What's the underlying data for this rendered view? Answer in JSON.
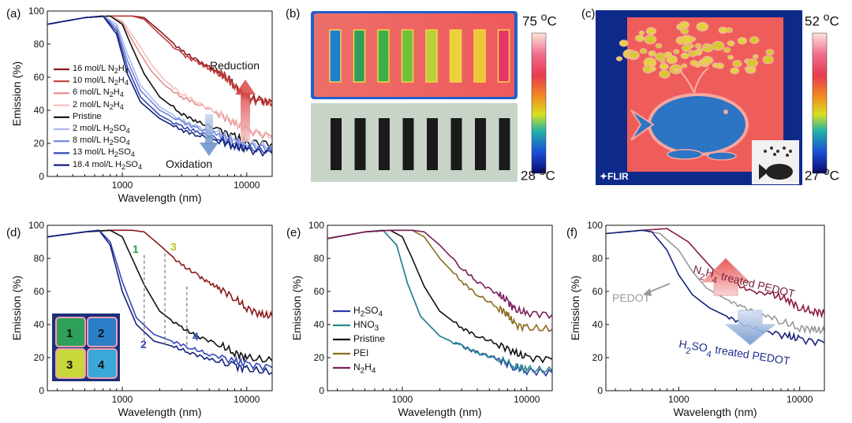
{
  "panels": {
    "a": {
      "label": "(a)",
      "chart_data": {
        "type": "line",
        "xlabel": "Wavelength (nm)",
        "ylabel": "Emission (%)",
        "xscale": "log",
        "xlim": [
          250,
          16000
        ],
        "ylim": [
          0,
          100
        ],
        "xticks": [
          "1000",
          "10000"
        ],
        "yticks": [
          "0",
          "20",
          "40",
          "60",
          "80",
          "100"
        ],
        "legend_position": "left",
        "annotations": [
          "Reduction",
          "Oxidation"
        ],
        "series": [
          {
            "name_html": "16 mol/L N<sub>2</sub>H<sub>4</sub>",
            "name": "16 mol/L N2H4",
            "color": "#8b1a1a",
            "x": [
              250,
              500,
              800,
              1200,
              1500,
              2000,
              3000,
              4000,
              5000,
              6000,
              7000,
              8000,
              10000,
              13000,
              16000
            ],
            "y": [
              92,
              96,
              97,
              97,
              96,
              88,
              76,
              70,
              66,
              63,
              60,
              55,
              48,
              46,
              45
            ]
          },
          {
            "name_html": "10 mol/L N<sub>2</sub>H<sub>4</sub>",
            "name": "10 mol/L N2H4",
            "color": "#c23b3b",
            "x": [
              250,
              500,
              800,
              1200,
              1500,
              2000,
              3000,
              4000,
              5000,
              6000,
              7000,
              8000,
              10000,
              13000,
              16000
            ],
            "y": [
              92,
              96,
              97,
              97,
              95,
              86,
              74,
              69,
              65,
              62,
              59,
              54,
              47,
              45,
              44
            ]
          },
          {
            "name_html": "6 mol/L N<sub>2</sub>H<sub>4</sub>",
            "name": "6 mol/L N2H4",
            "color": "#e58f8f",
            "x": [
              250,
              500,
              800,
              1000,
              1300,
              1700,
              2200,
              3000,
              4000,
              6000,
              8000,
              10000,
              16000
            ],
            "y": [
              92,
              96,
              97,
              93,
              78,
              64,
              55,
              48,
              44,
              38,
              32,
              28,
              24
            ]
          },
          {
            "name_html": "2 mol/L N<sub>2</sub>H<sub>4</sub>",
            "name": "2 mol/L N2H4",
            "color": "#f4c0c0",
            "x": [
              250,
              500,
              800,
              1000,
              1300,
              1700,
              2200,
              3000,
              4000,
              6000,
              8000,
              10000,
              16000
            ],
            "y": [
              92,
              96,
              97,
              94,
              82,
              68,
              58,
              50,
              45,
              38,
              32,
              28,
              24
            ]
          },
          {
            "name_html": "Pristine",
            "name": "Pristine",
            "color": "#111111",
            "x": [
              250,
              500,
              800,
              1000,
              1200,
              1500,
              2000,
              3000,
              4000,
              6000,
              8000,
              10000,
              16000
            ],
            "y": [
              92,
              96,
              97,
              92,
              78,
              62,
              48,
              38,
              33,
              28,
              24,
              21,
              20
            ]
          },
          {
            "name_html": "2 mol/L H<sub>2</sub>SO<sub>4</sub>",
            "name": "2 mol/L H2SO4",
            "color": "#aab8ea",
            "x": [
              250,
              500,
              700,
              900,
              1100,
              1400,
              2000,
              3000,
              4000,
              6000,
              8000,
              10000,
              16000
            ],
            "y": [
              92,
              96,
              97,
              92,
              74,
              55,
              42,
              34,
              30,
              26,
              22,
              20,
              18
            ]
          },
          {
            "name_html": "8 mol/L H<sub>2</sub>SO<sub>4</sub>",
            "name": "8 mol/L H2SO4",
            "color": "#6f84d8",
            "x": [
              250,
              500,
              700,
              900,
              1100,
              1400,
              2000,
              3000,
              4000,
              6000,
              8000,
              10000,
              16000
            ],
            "y": [
              92,
              96,
              97,
              90,
              70,
              52,
              40,
              33,
              29,
              25,
              21,
              19,
              17
            ]
          },
          {
            "name_html": "13 mol/L H<sub>2</sub>SO<sub>4</sub>",
            "name": "13 mol/L H2SO4",
            "color": "#3448b5",
            "x": [
              250,
              500,
              700,
              900,
              1100,
              1400,
              2000,
              3000,
              4000,
              6000,
              8000,
              10000,
              16000
            ],
            "y": [
              92,
              96,
              97,
              88,
              66,
              48,
              37,
              30,
              27,
              23,
              19,
              17,
              15
            ]
          },
          {
            "name_html": "18.4 mol/L H<sub>2</sub>SO<sub>4</sub>",
            "name": "18.4 mol/L H2SO4",
            "color": "#14237a",
            "x": [
              250,
              500,
              700,
              900,
              1100,
              1400,
              2000,
              3000,
              4000,
              6000,
              8000,
              10000,
              16000
            ],
            "y": [
              92,
              96,
              97,
              86,
              62,
              45,
              35,
              28,
              25,
              22,
              18,
              16,
              14
            ]
          }
        ]
      }
    },
    "b": {
      "label": "(b)",
      "scale_max": "75 °C",
      "scale_max_html": "75 <sup>o</sup>C",
      "scale_min_html": "28 <sup>o</sup>C",
      "strip_colors": [
        "#1c7fd0",
        "#2fa05a",
        "#3bb04a",
        "#6cc03c",
        "#b8d03a",
        "#e7d33a",
        "#eec63a",
        "#e8346a"
      ]
    },
    "c": {
      "label": "(c)",
      "scale_max_html": "52 <sup>o</sup>C",
      "scale_min_html": "27 <sup>o</sup>C",
      "brand": "✦FLIR"
    },
    "d": {
      "label": "(d)",
      "chart_data": {
        "type": "line",
        "xlabel": "Wavelength (nm)",
        "ylabel": "Emission (%)",
        "xscale": "log",
        "xlim": [
          250,
          16000
        ],
        "ylim": [
          0,
          100
        ],
        "xticks": [
          "1000",
          "10000"
        ],
        "yticks": [
          "0",
          "20",
          "40",
          "60",
          "80",
          "100"
        ],
        "annotations": [
          {
            "text": "1",
            "color": "#2f9b4a"
          },
          {
            "text": "2",
            "color": "#2e49b8"
          },
          {
            "text": "3",
            "color": "#b8c21e"
          },
          {
            "text": "4",
            "color": "#2e49b8"
          }
        ],
        "inset_labels": [
          "1",
          "2",
          "3",
          "4"
        ],
        "series": [
          {
            "color": "#8b1a1a",
            "x": [
              250,
              500,
              800,
              1200,
              1500,
              2000,
              3000,
              4000,
              5000,
              6000,
              8000,
              10000,
              13000,
              16000
            ],
            "y": [
              93,
              96,
              97,
              97,
              96,
              88,
              76,
              70,
              65,
              62,
              56,
              50,
              46,
              45
            ]
          },
          {
            "color": "#111111",
            "x": [
              250,
              500,
              800,
              1000,
              1200,
              1500,
              2000,
              3000,
              4000,
              6000,
              8000,
              10000,
              16000
            ],
            "y": [
              93,
              96,
              97,
              93,
              80,
              64,
              48,
              38,
              33,
              28,
              23,
              20,
              18
            ]
          },
          {
            "color": "#3448b5",
            "x": [
              250,
              500,
              650,
              800,
              1000,
              1300,
              1800,
              2500,
              3500,
              5000,
              8000,
              10000,
              16000
            ],
            "y": [
              93,
              96,
              97,
              90,
              66,
              44,
              34,
              30,
              26,
              22,
              18,
              16,
              14
            ]
          },
          {
            "color": "#14237a",
            "x": [
              250,
              500,
              650,
              800,
              1000,
              1300,
              1800,
              2500,
              3500,
              5000,
              8000,
              10000,
              16000
            ],
            "y": [
              93,
              96,
              97,
              88,
              60,
              40,
              30,
              27,
              23,
              19,
              15,
              13,
              11
            ]
          }
        ]
      }
    },
    "e": {
      "label": "(e)",
      "chart_data": {
        "type": "line",
        "xlabel": "Wavelength (nm)",
        "ylabel": "Emission (%)",
        "xscale": "log",
        "xlim": [
          250,
          16000
        ],
        "ylim": [
          0,
          100
        ],
        "xticks": [
          "1000",
          "10000"
        ],
        "yticks": [
          "0",
          "20",
          "40",
          "60",
          "80",
          "100"
        ],
        "legend_position": "bottom-left",
        "series": [
          {
            "name_html": "H<sub>2</sub>SO<sub>4</sub>",
            "name": "H2SO4",
            "color": "#2a3aa8",
            "x": [
              250,
              500,
              700,
              900,
              1100,
              1400,
              2000,
              3000,
              4000,
              6000,
              8000,
              10000,
              16000
            ],
            "y": [
              92,
              96,
              97,
              88,
              65,
              45,
              33,
              27,
              23,
              19,
              14,
              12,
              11
            ]
          },
          {
            "name_html": "HNO<sub>3</sub>",
            "name": "HNO3",
            "color": "#2a8a8a",
            "x": [
              250,
              500,
              700,
              900,
              1100,
              1400,
              2000,
              3000,
              4000,
              6000,
              8000,
              10000,
              16000
            ],
            "y": [
              92,
              96,
              97,
              88,
              65,
              45,
              33,
              27,
              23,
              19,
              15,
              13,
              12
            ]
          },
          {
            "name_html": "Pristine",
            "name": "Pristine",
            "color": "#111111",
            "x": [
              250,
              500,
              800,
              1000,
              1200,
              1500,
              2000,
              3000,
              4000,
              6000,
              8000,
              10000,
              16000
            ],
            "y": [
              92,
              96,
              97,
              93,
              80,
              63,
              48,
              38,
              33,
              28,
              23,
              20,
              19
            ]
          },
          {
            "name_html": "PEI",
            "name": "PEI",
            "color": "#8a6a1e",
            "x": [
              250,
              500,
              800,
              1200,
              1500,
              2000,
              3000,
              4000,
              6000,
              7000,
              8000,
              10000,
              16000
            ],
            "y": [
              92,
              96,
              97,
              97,
              93,
              80,
              66,
              58,
              50,
              46,
              40,
              38,
              37
            ]
          },
          {
            "name_html": "N<sub>2</sub>H<sub>4</sub>",
            "name": "N2H4",
            "color": "#7a1f5a",
            "x": [
              250,
              500,
              800,
              1200,
              1500,
              2000,
              3000,
              4000,
              6000,
              7000,
              8000,
              10000,
              16000
            ],
            "y": [
              92,
              96,
              97,
              97,
              96,
              88,
              74,
              66,
              58,
              54,
              49,
              47,
              46
            ]
          }
        ]
      }
    },
    "f": {
      "label": "(f)",
      "chart_data": {
        "type": "line",
        "xlabel": "Wavelength (nm)",
        "ylabel": "Emission (%)",
        "xscale": "log",
        "xlim": [
          250,
          16000
        ],
        "ylim": [
          0,
          100
        ],
        "xticks": [
          "1000",
          "10000"
        ],
        "yticks": [
          "0",
          "20",
          "40",
          "60",
          "80",
          "100"
        ],
        "annotations_html": [
          "N<tspan baseline-shift='sub' font-size='11'>2</tspan>H<tspan baseline-shift='sub' font-size='11'>4</tspan> treated PEDOT",
          "PEDOT",
          "H<tspan baseline-shift='sub' font-size='11'>2</tspan>SO<tspan baseline-shift='sub' font-size='11'>4</tspan> treated PEDOT"
        ],
        "series": [
          {
            "name": "N2H4 treated PEDOT",
            "color": "#8b1a3a",
            "x": [
              250,
              500,
              800,
              1200,
              1500,
              2000,
              3000,
              4000,
              6000,
              8000,
              10000,
              13000,
              16000
            ],
            "y": [
              95,
              97,
              98,
              90,
              82,
              72,
              64,
              60,
              58,
              55,
              50,
              48,
              47
            ]
          },
          {
            "name": "PEDOT",
            "color": "#999999",
            "x": [
              250,
              500,
              700,
              1000,
              1300,
              1700,
              2500,
              3500,
              5000,
              7000,
              10000,
              13000,
              16000
            ],
            "y": [
              95,
              97,
              95,
              85,
              72,
              62,
              55,
              50,
              46,
              42,
              38,
              37,
              36
            ]
          },
          {
            "name": "H2SO4 treated PEDOT",
            "color": "#14237a",
            "x": [
              250,
              500,
              600,
              800,
              1000,
              1300,
              1800,
              2500,
              3500,
              5000,
              8000,
              10000,
              16000
            ],
            "y": [
              95,
              97,
              96,
              85,
              70,
              58,
              50,
              45,
              40,
              36,
              33,
              31,
              29
            ]
          }
        ]
      }
    }
  }
}
